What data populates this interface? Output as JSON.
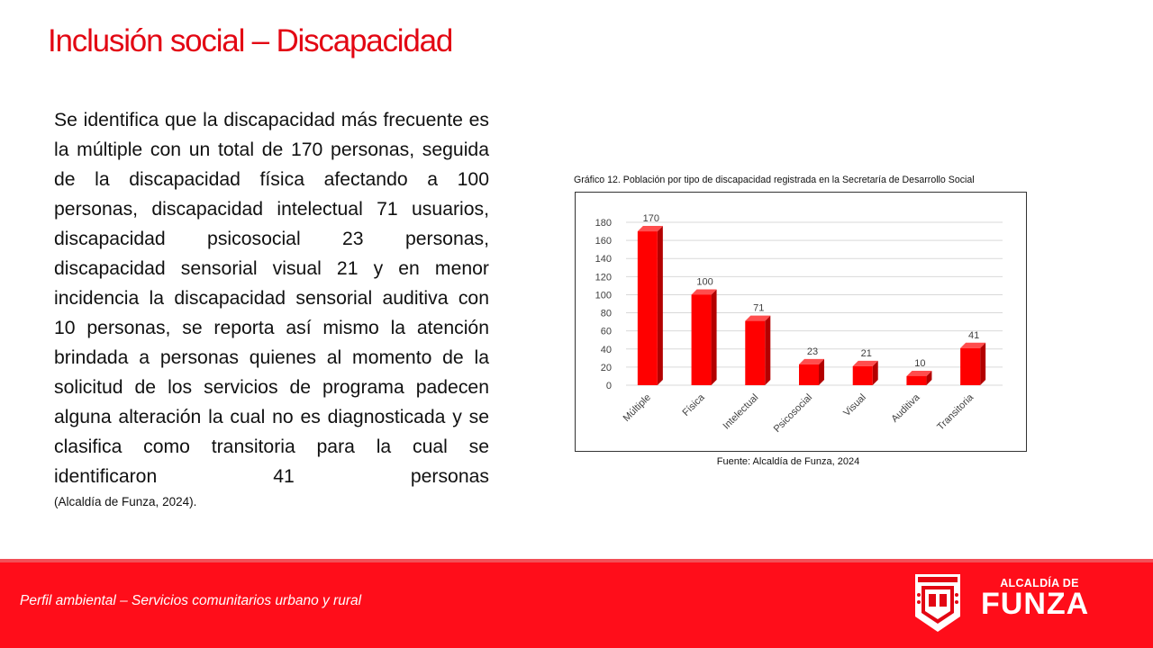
{
  "slide": {
    "title": "Inclusión social – Discapacidad",
    "paragraph": "Se identifica que la discapacidad más frecuente es la múltiple con un total de 170 personas, seguida de la discapacidad física afectando a 100 personas, discapacidad intelectual 71 usuarios, discapacidad psicosocial 23 personas, discapacidad sensorial visual 21 y en menor incidencia la discapacidad sensorial auditiva con 10 personas, se reporta así mismo la atención brindada a personas quienes al momento de la solicitud de los servicios de programa padecen alguna alteración la cual no es diagnosticada y se clasifica como transitoria para la cual se identificaron 41 personas",
    "citation": "(Alcaldía de Funza, 2024).",
    "chart_caption": "Gráfico 12. Población por tipo de discapacidad registrada en la Secretaría de Desarrollo Social",
    "chart_source": "Fuente: Alcaldía de Funza, 2024"
  },
  "chart_data": {
    "type": "bar",
    "title": "",
    "xlabel": "",
    "ylabel": "",
    "categories": [
      "Múltiple",
      "Física",
      "Intelectual",
      "Psicosocial",
      "Visual",
      "Auditiva",
      "Transitoria"
    ],
    "values": [
      170,
      100,
      71,
      23,
      21,
      10,
      41
    ],
    "ylim": [
      0,
      180
    ],
    "yticks": [
      0,
      20,
      40,
      60,
      80,
      100,
      120,
      140,
      160,
      180
    ],
    "grid": true,
    "legend": "none",
    "bar_color": "#ff0000",
    "bar_side_color": "#b30000"
  },
  "footer": {
    "text": "Perfil ambiental – Servicios comunitarios urbano y rural",
    "logo_small": "ALCALDÍA DE",
    "logo_big": "FUNZA"
  },
  "colors": {
    "accent": "#e30613",
    "footer": "#ff0d1a"
  }
}
